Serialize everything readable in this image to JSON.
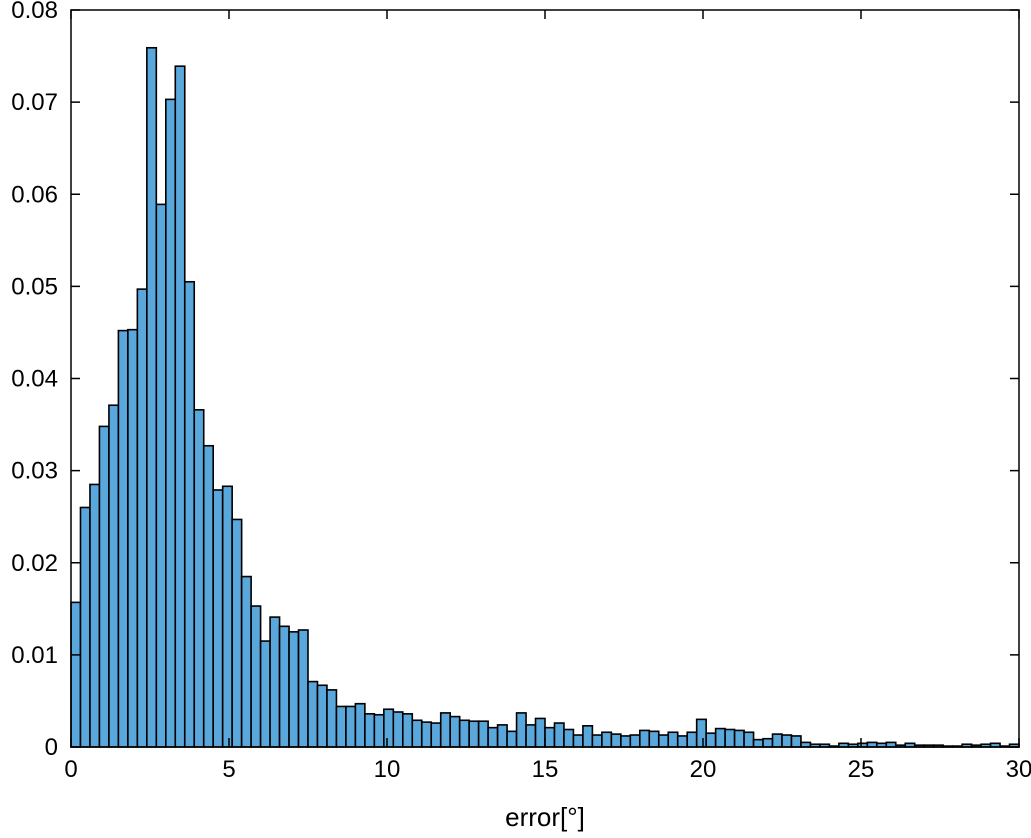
{
  "chart_data": {
    "type": "bar",
    "xlabel": "error[°]",
    "ylabel": "",
    "title": "",
    "xlim": [
      0,
      30
    ],
    "ylim": [
      0,
      0.08
    ],
    "grid": false,
    "bin_width": 0.3,
    "x_ticks": [
      "0",
      "5",
      "10",
      "15",
      "20",
      "25",
      "30"
    ],
    "x_tick_values": [
      0,
      5,
      10,
      15,
      20,
      25,
      30
    ],
    "y_ticks": [
      "0",
      "0.01",
      "0.02",
      "0.03",
      "0.04",
      "0.05",
      "0.06",
      "0.07",
      "0.08"
    ],
    "y_tick_values": [
      0,
      0.01,
      0.02,
      0.03,
      0.04,
      0.05,
      0.06,
      0.07,
      0.08
    ],
    "bar_color": "#5aa7dc",
    "edge_color": "#000000",
    "values": [
      0.0157,
      0.026,
      0.0285,
      0.0348,
      0.0371,
      0.0452,
      0.0453,
      0.0497,
      0.0759,
      0.0589,
      0.0703,
      0.0739,
      0.0505,
      0.0366,
      0.0327,
      0.0279,
      0.0283,
      0.0247,
      0.0185,
      0.0153,
      0.0115,
      0.0141,
      0.0131,
      0.0125,
      0.0127,
      0.0071,
      0.0067,
      0.0062,
      0.0044,
      0.0044,
      0.0047,
      0.0036,
      0.0035,
      0.0041,
      0.0038,
      0.0036,
      0.0029,
      0.0027,
      0.0026,
      0.0037,
      0.0033,
      0.0029,
      0.0028,
      0.0028,
      0.0021,
      0.0024,
      0.0017,
      0.0037,
      0.0024,
      0.0031,
      0.0021,
      0.0026,
      0.0019,
      0.0013,
      0.0023,
      0.0013,
      0.0016,
      0.0014,
      0.0012,
      0.0013,
      0.0018,
      0.0017,
      0.0013,
      0.0016,
      0.0012,
      0.0016,
      0.003,
      0.0015,
      0.002,
      0.0019,
      0.0018,
      0.0016,
      0.0008,
      0.0009,
      0.0014,
      0.0013,
      0.0012,
      0.0005,
      0.0003,
      0.0003,
      0.0001,
      0.0004,
      0.0003,
      0.0004,
      0.0005,
      0.0004,
      0.0005,
      0.0002,
      0.0004,
      0.0002,
      0.0002,
      0.0002,
      0.0001,
      0.0001,
      0.0003,
      0.0002,
      0.0003,
      0.0004,
      0.0001,
      0.0003
    ]
  }
}
